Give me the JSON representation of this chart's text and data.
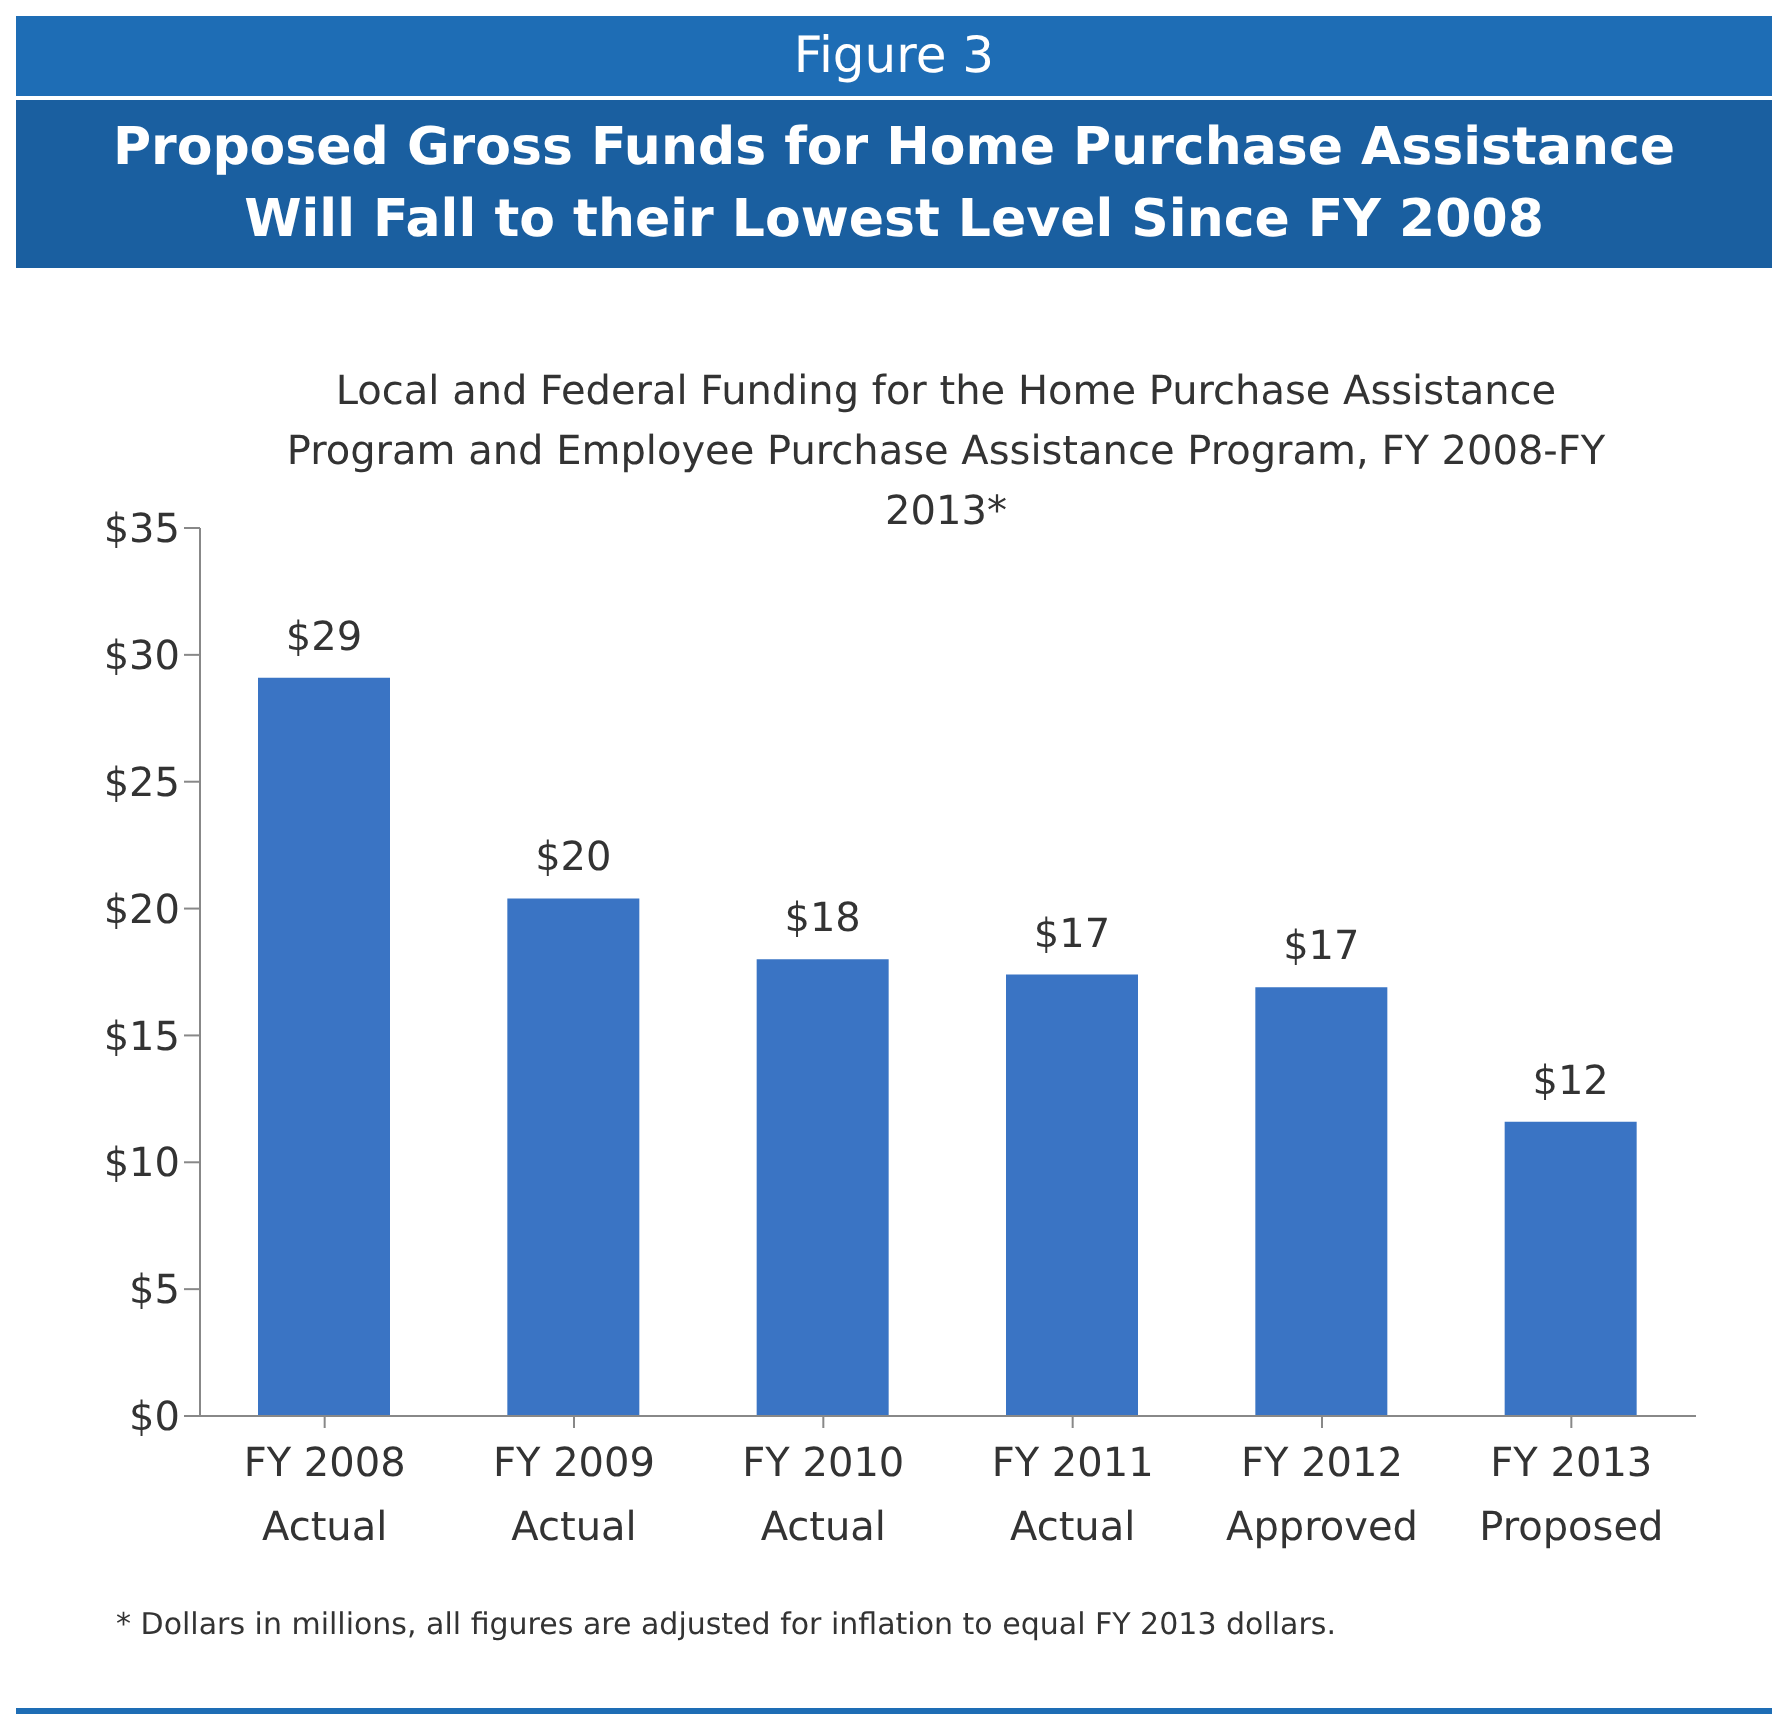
{
  "chart_data": {
    "type": "bar",
    "title": "Proposed Gross Funds for Home Purchase Assistance Will Fall to their Lowest Level Since FY 2008",
    "subtitle": "Local and Federal Funding for the Home Purchase Assistance Program and Employee Purchase Assistance Program, FY 2008-FY 2013*",
    "annotations": [
      "Figure 3",
      "* Dollars in millions, all figures are adjusted for inflation to equal FY 2013 dollars."
    ],
    "categories": [
      "FY 2008\nActual",
      "FY 2009\nActual",
      "FY 2010\nActual",
      "FY 2011\nActual",
      "FY 2012\nApproved",
      "FY 2013\nProposed"
    ],
    "values": [
      29.1,
      20.4,
      18,
      17.4,
      16.9,
      11.6
    ],
    "value_labels": [
      "$29",
      "$20",
      "$18",
      "$17",
      "$17",
      "$12"
    ],
    "color": "#3a74c4",
    "ylim": [
      0,
      35
    ],
    "yticks": [
      {
        "value": 0,
        "label": "$0"
      },
      {
        "value": 5,
        "label": "$5"
      },
      {
        "value": 10,
        "label": "$10"
      },
      {
        "value": 15,
        "label": "$15"
      },
      {
        "value": 20,
        "label": "$20"
      },
      {
        "value": 25,
        "label": "$25"
      },
      {
        "value": 30,
        "label": "$30"
      },
      {
        "value": 35,
        "label": "$35"
      }
    ],
    "grid": false,
    "legend": false
  }
}
